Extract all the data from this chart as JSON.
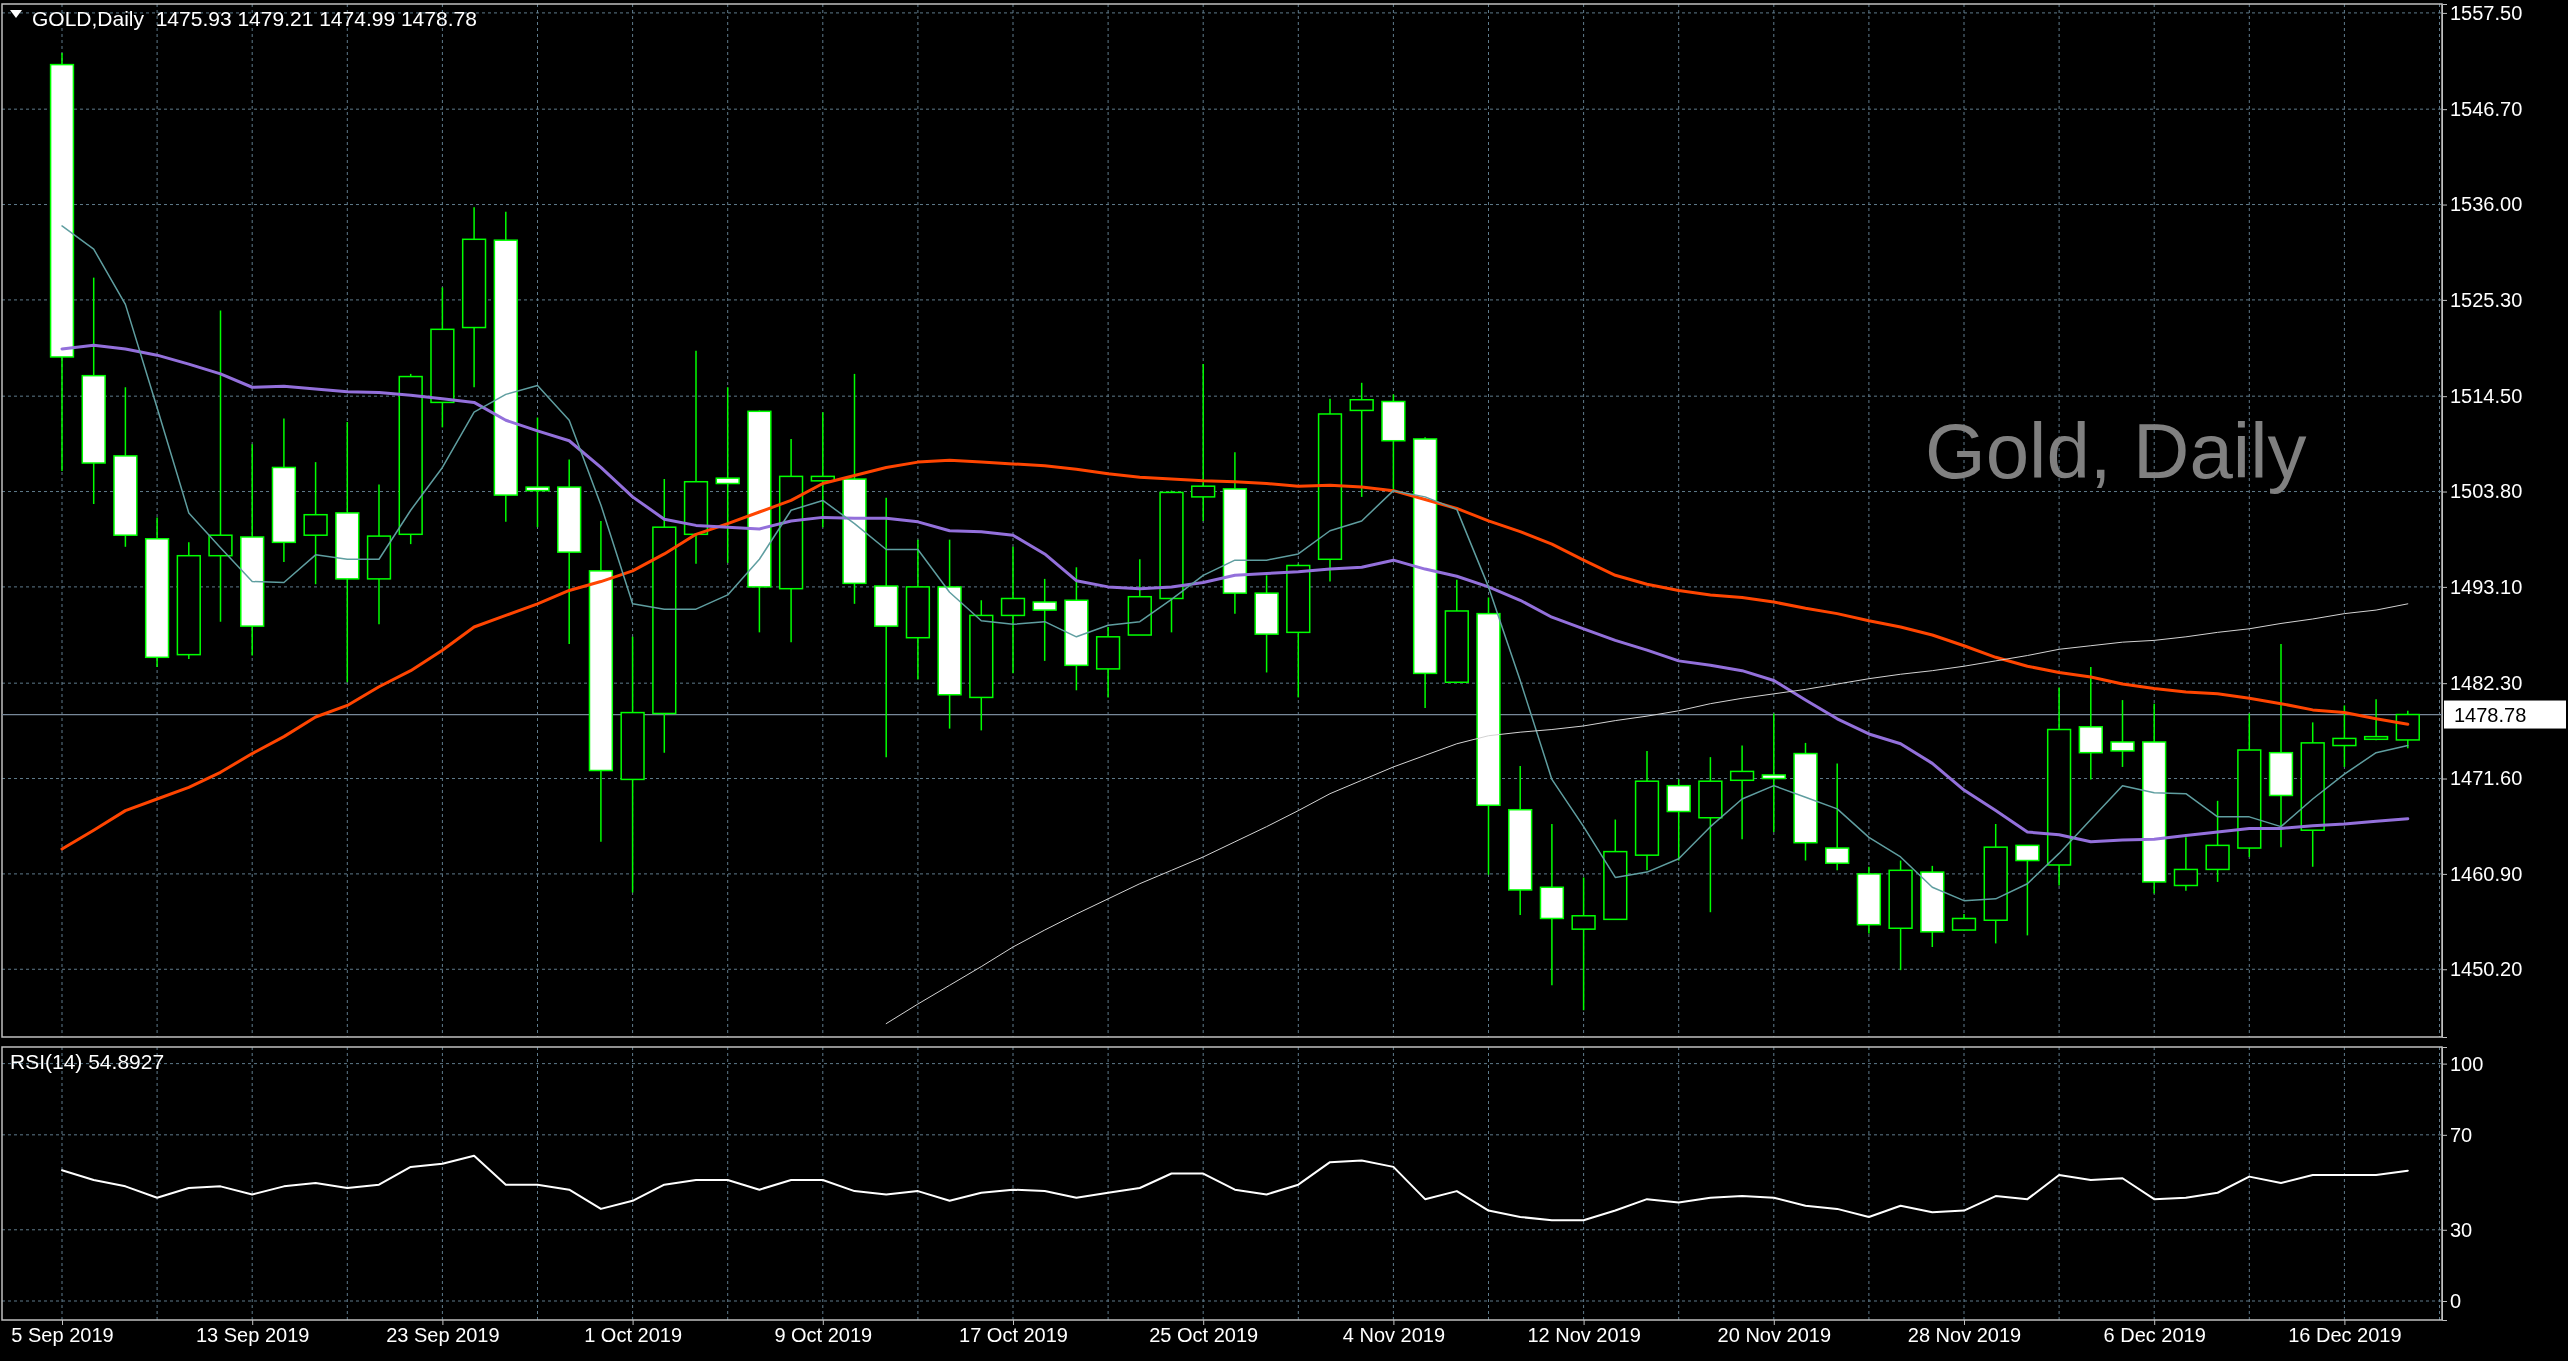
{
  "chart_data": [
    {
      "type": "candlestick",
      "title": "GOLD,Daily  1475.93 1479.21 1474.99 1478.78",
      "annotations": [
        "Gold, Daily"
      ],
      "tick_labels": "y",
      "grid": true,
      "categories": [
        null,
        null,
        null,
        null,
        null,
        null,
        null,
        null,
        null,
        null,
        null,
        null,
        null,
        null,
        null,
        null,
        null,
        null,
        null,
        null,
        null,
        null,
        null,
        null,
        null,
        null,
        null,
        null,
        null,
        null,
        null,
        null,
        null,
        null,
        null,
        null,
        null,
        null,
        null,
        null,
        null,
        null,
        null,
        null,
        null,
        null,
        null,
        null,
        null,
        null,
        null,
        null,
        null,
        null,
        null,
        null,
        null,
        null,
        null,
        null,
        null,
        null,
        null,
        null,
        null,
        null,
        null,
        null,
        null,
        null,
        null,
        null,
        null,
        null,
        null
      ],
      "ylim": [
        1442.6,
        1558.5
      ],
      "yticks": [
        {
          "value": 1450.2,
          "label": "1450.20"
        },
        {
          "value": 1460.9,
          "label": "1460.90"
        },
        {
          "value": 1471.6,
          "label": "1471.60"
        },
        {
          "value": 1482.3,
          "label": "1482.30"
        },
        {
          "value": 1493.1,
          "label": "1493.10"
        },
        {
          "value": 1503.8,
          "label": "1503.80"
        },
        {
          "value": 1514.5,
          "label": "1514.50"
        },
        {
          "value": 1525.3,
          "label": "1525.30"
        },
        {
          "value": 1536,
          "label": "1536.00"
        },
        {
          "value": 1546.7,
          "label": "1546.70"
        },
        {
          "value": 1557.5,
          "label": "1557.50"
        }
      ],
      "ref_lines": [
        {
          "axis": "y",
          "value": 1478.78,
          "label": "1478.78",
          "color": "#778899"
        }
      ],
      "series": [
        {
          "color": "#00ff00",
          "ohlc": [
            [
              1551.7,
              1553.0,
              1506.1,
              1518.9
            ],
            [
              1516.8,
              1527.8,
              1502.4,
              1507.0
            ],
            [
              1507.8,
              1515.5,
              1497.6,
              1498.9
            ],
            [
              1498.5,
              1500.9,
              1484.1,
              1485.2
            ],
            [
              1485.5,
              1498.1,
              1485.0,
              1496.6
            ],
            [
              1496.6,
              1524.1,
              1489.2,
              1498.9
            ],
            [
              1498.7,
              1509.1,
              1485.4,
              1488.7
            ],
            [
              1506.5,
              1512.0,
              1495.9,
              1498.1
            ],
            [
              1498.9,
              1507.1,
              1493.4,
              1501.2
            ],
            [
              1501.4,
              1511.6,
              1482.4,
              1494.0
            ],
            [
              1494.0,
              1504.6,
              1488.9,
              1498.8
            ],
            [
              1499.0,
              1517.0,
              1497.9,
              1516.7
            ],
            [
              1513.8,
              1526.7,
              1511.0,
              1522.0
            ],
            [
              1522.2,
              1535.7,
              1515.5,
              1532.1
            ],
            [
              1532.0,
              1535.2,
              1500.4,
              1503.4
            ],
            [
              1504.3,
              1512.1,
              1499.8,
              1503.9
            ],
            [
              1504.3,
              1507.4,
              1486.7,
              1497.0
            ],
            [
              1494.9,
              1500.5,
              1464.5,
              1472.5
            ],
            [
              1471.5,
              1487.5,
              1458.8,
              1479.0
            ],
            [
              1478.9,
              1505.2,
              1474.5,
              1499.8
            ],
            [
              1499.0,
              1519.6,
              1495.7,
              1504.9
            ],
            [
              1505.3,
              1515.5,
              1495.8,
              1504.7
            ],
            [
              1512.8,
              1512.9,
              1488.0,
              1493.1
            ],
            [
              1492.9,
              1509.7,
              1486.9,
              1505.5
            ],
            [
              1505.0,
              1512.7,
              1499.8,
              1505.5
            ],
            [
              1505.2,
              1517.0,
              1491.2,
              1493.5
            ],
            [
              1493.2,
              1503.1,
              1474.0,
              1488.7
            ],
            [
              1487.4,
              1498.4,
              1482.7,
              1493.1
            ],
            [
              1493.1,
              1498.4,
              1477.2,
              1481.0
            ],
            [
              1480.7,
              1491.6,
              1477.0,
              1489.9
            ],
            [
              1489.9,
              1497.6,
              1483.4,
              1491.8
            ],
            [
              1491.4,
              1494.0,
              1484.8,
              1490.5
            ],
            [
              1491.6,
              1495.3,
              1481.5,
              1484.3
            ],
            [
              1483.9,
              1488.6,
              1480.7,
              1487.5
            ],
            [
              1487.7,
              1496.2,
              1487.7,
              1492.0
            ],
            [
              1491.8,
              1503.9,
              1488.0,
              1503.7
            ],
            [
              1503.2,
              1518.1,
              1500.5,
              1504.4
            ],
            [
              1504.1,
              1508.2,
              1490.1,
              1492.4
            ],
            [
              1492.4,
              1494.4,
              1483.5,
              1487.8
            ],
            [
              1488.0,
              1495.7,
              1480.7,
              1495.5
            ],
            [
              1496.2,
              1514.2,
              1493.7,
              1512.5
            ],
            [
              1512.9,
              1516.0,
              1503.2,
              1514.1
            ],
            [
              1513.9,
              1514.7,
              1503.9,
              1509.5
            ],
            [
              1509.7,
              1509.9,
              1479.5,
              1483.4
            ],
            [
              1482.4,
              1493.9,
              1482.4,
              1490.4
            ],
            [
              1490.1,
              1491.9,
              1460.8,
              1468.6
            ],
            [
              1468.1,
              1473.0,
              1456.3,
              1459.1
            ],
            [
              1459.4,
              1466.5,
              1448.4,
              1455.9
            ],
            [
              1454.7,
              1460.5,
              1445.6,
              1456.2
            ],
            [
              1455.8,
              1467.0,
              1455.8,
              1463.4
            ],
            [
              1463.0,
              1474.7,
              1461.3,
              1471.3
            ],
            [
              1470.8,
              1471.5,
              1462.4,
              1467.9
            ],
            [
              1467.2,
              1474.0,
              1456.6,
              1471.3
            ],
            [
              1471.4,
              1475.3,
              1464.8,
              1472.4
            ],
            [
              1472.0,
              1478.9,
              1465.6,
              1471.6
            ],
            [
              1474.4,
              1475.6,
              1462.4,
              1464.4
            ],
            [
              1463.8,
              1473.3,
              1461.3,
              1462.1
            ],
            [
              1460.9,
              1461.7,
              1454.2,
              1455.2
            ],
            [
              1454.8,
              1462.4,
              1450.1,
              1461.3
            ],
            [
              1461.1,
              1461.8,
              1452.7,
              1454.4
            ],
            [
              1454.6,
              1456.4,
              1454.6,
              1455.9
            ],
            [
              1455.7,
              1466.5,
              1453.1,
              1463.9
            ],
            [
              1464.1,
              1464.1,
              1454.0,
              1462.4
            ],
            [
              1461.9,
              1481.8,
              1459.6,
              1477.1
            ],
            [
              1477.4,
              1484.1,
              1471.5,
              1474.5
            ],
            [
              1475.7,
              1480.4,
              1472.9,
              1474.7
            ],
            [
              1475.7,
              1480.0,
              1458.7,
              1460.0
            ],
            [
              1459.6,
              1465.0,
              1459.0,
              1461.4
            ],
            [
              1461.4,
              1469.1,
              1460.0,
              1464.1
            ],
            [
              1463.8,
              1478.9,
              1462.8,
              1474.8
            ],
            [
              1474.5,
              1486.7,
              1463.9,
              1469.7
            ],
            [
              1465.8,
              1477.9,
              1461.7,
              1475.6
            ],
            [
              1475.3,
              1479.8,
              1472.9,
              1476.1
            ],
            [
              1476.0,
              1480.5,
              1475.9,
              1476.3
            ],
            [
              1475.93,
              1479.21,
              1474.99,
              1478.78
            ]
          ],
          "colors": [
            "#ffffff",
            "#ffffff",
            "#ffffff",
            "#ffffff",
            "#000000",
            "#000000",
            "#ffffff",
            "#ffffff",
            "#000000",
            "#ffffff",
            "#000000",
            "#000000",
            "#000000",
            "#000000",
            "#ffffff",
            "#ffffff",
            "#ffffff",
            "#ffffff",
            "#000000",
            "#000000",
            "#000000",
            "#ffffff",
            "#ffffff",
            "#000000",
            "#000000",
            "#ffffff",
            "#ffffff",
            "#000000",
            "#ffffff",
            "#000000",
            "#000000",
            "#ffffff",
            "#ffffff",
            "#000000",
            "#000000",
            "#000000",
            "#000000",
            "#ffffff",
            "#ffffff",
            "#000000",
            "#000000",
            "#000000",
            "#ffffff",
            "#ffffff",
            "#000000",
            "#ffffff",
            "#ffffff",
            "#ffffff",
            "#000000",
            "#000000",
            "#000000",
            "#ffffff",
            "#000000",
            "#000000",
            "#ffffff",
            "#ffffff",
            "#ffffff",
            "#ffffff",
            "#000000",
            "#ffffff",
            "#000000",
            "#000000",
            "#ffffff",
            "#000000",
            "#ffffff",
            "#ffffff",
            "#ffffff",
            "#000000",
            "#000000",
            "#000000",
            "#ffffff",
            "#000000",
            "#000000",
            "#000000",
            "#000000"
          ]
        },
        {
          "type": "line",
          "color": "#ff4500",
          "values": [
            1463.7,
            1465.8,
            1468.0,
            1469.3,
            1470.6,
            1472.3,
            1474.4,
            1476.3,
            1478.5,
            1479.8,
            1481.9,
            1483.7,
            1486.0,
            1488.6,
            1489.9,
            1491.2,
            1492.7,
            1493.7,
            1494.9,
            1496.8,
            1499.0,
            1500.2,
            1501.5,
            1502.8,
            1504.7,
            1505.6,
            1506.5,
            1507.1,
            1507.3,
            1507.1,
            1506.9,
            1506.7,
            1506.3,
            1505.8,
            1505.4,
            1505.2,
            1505.0,
            1504.9,
            1504.7,
            1504.4,
            1504.5,
            1504.3,
            1503.9,
            1502.9,
            1501.9,
            1500.5,
            1499.3,
            1497.9,
            1496.1,
            1494.4,
            1493.4,
            1492.7,
            1492.2,
            1491.9,
            1491.4,
            1490.7,
            1490.1,
            1489.3,
            1488.6,
            1487.7,
            1486.5,
            1485.2,
            1484.2,
            1483.5,
            1483.0,
            1482.2,
            1481.7,
            1481.3,
            1481.1,
            1480.6,
            1480.0,
            1479.3,
            1479.0,
            1478.3,
            1477.7
          ]
        },
        {
          "type": "line",
          "color": "#9370db",
          "values": [
            1519.8,
            1520.2,
            1519.8,
            1519.1,
            1518.1,
            1517.0,
            1515.5,
            1515.6,
            1515.3,
            1515.0,
            1514.9,
            1514.6,
            1514.2,
            1513.8,
            1511.8,
            1510.6,
            1509.5,
            1506.5,
            1503.2,
            1500.7,
            1500.0,
            1499.8,
            1499.6,
            1500.5,
            1500.9,
            1500.8,
            1500.8,
            1500.4,
            1499.4,
            1499.3,
            1498.9,
            1496.8,
            1493.8,
            1493.1,
            1492.9,
            1493.1,
            1493.6,
            1494.4,
            1494.6,
            1494.8,
            1495.1,
            1495.3,
            1496.1,
            1495.1,
            1494.3,
            1493.1,
            1491.6,
            1489.7,
            1488.4,
            1487.1,
            1486.0,
            1484.8,
            1484.3,
            1483.7,
            1482.6,
            1480.4,
            1478.3,
            1476.6,
            1475.5,
            1473.3,
            1470.3,
            1468.0,
            1465.6,
            1465.3,
            1464.5,
            1464.7,
            1464.8,
            1465.2,
            1465.6,
            1466.0,
            1466.0,
            1466.3,
            1466.5,
            1466.8,
            1467.1
          ]
        },
        {
          "type": "line",
          "color": "#5f9ea0",
          "values": [
            1533.6,
            1531.0,
            1524.8,
            1513.2,
            1501.4,
            1497.5,
            1493.7,
            1493.6,
            1496.7,
            1496.2,
            1496.2,
            1501.7,
            1506.5,
            1512.7,
            1514.7,
            1515.7,
            1511.8,
            1502.3,
            1491.2,
            1490.6,
            1490.6,
            1492.2,
            1496.2,
            1501.7,
            1502.8,
            1500.2,
            1497.3,
            1497.3,
            1492.5,
            1489.3,
            1488.9,
            1489.2,
            1487.5,
            1488.8,
            1489.2,
            1491.7,
            1494.4,
            1496.1,
            1496.1,
            1496.8,
            1499.4,
            1500.5,
            1503.9,
            1503.2,
            1501.8,
            1493.1,
            1482.6,
            1471.5,
            1466.2,
            1460.5,
            1461.1,
            1462.6,
            1466.2,
            1469.3,
            1470.8,
            1469.5,
            1468.2,
            1465.0,
            1462.8,
            1459.4,
            1457.9,
            1458.1,
            1459.8,
            1463.2,
            1467.0,
            1470.8,
            1470.0,
            1469.9,
            1467.3,
            1467.3,
            1466.2,
            1469.3,
            1472.1,
            1474.5,
            1475.3
          ]
        },
        {
          "type": "line",
          "color": "#d3d3d3",
          "values": [
            null,
            null,
            null,
            null,
            null,
            null,
            null,
            null,
            null,
            null,
            null,
            null,
            null,
            null,
            null,
            null,
            null,
            null,
            null,
            null,
            null,
            null,
            null,
            null,
            null,
            null,
            1444.1,
            1446.3,
            1448.4,
            1450.5,
            1452.7,
            1454.6,
            1456.4,
            1458.1,
            1459.8,
            1461.3,
            1462.8,
            1464.5,
            1466.2,
            1468.0,
            1469.9,
            1471.4,
            1472.9,
            1474.2,
            1475.5,
            1476.4,
            1476.8,
            1477.1,
            1477.5,
            1478.1,
            1478.6,
            1479.2,
            1480.0,
            1480.6,
            1481.1,
            1481.6,
            1482.2,
            1482.8,
            1483.3,
            1483.7,
            1484.2,
            1484.8,
            1485.4,
            1486.1,
            1486.5,
            1486.9,
            1487.1,
            1487.5,
            1488.0,
            1488.4,
            1489.0,
            1489.5,
            1490.1,
            1490.5,
            1491.2
          ]
        }
      ]
    },
    {
      "type": "line",
      "title": "RSI(14) 54.8927",
      "grid": true,
      "categories": [
        "5 Sep 2019",
        null,
        null,
        null,
        null,
        null,
        "13 Sep 2019",
        null,
        null,
        null,
        null,
        null,
        "23 Sep 2019",
        null,
        null,
        null,
        null,
        null,
        "1 Oct 2019",
        null,
        null,
        null,
        null,
        null,
        "9 Oct 2019",
        null,
        null,
        null,
        null,
        null,
        "17 Oct 2019",
        null,
        null,
        null,
        null,
        null,
        "25 Oct 2019",
        null,
        null,
        null,
        null,
        null,
        "4 Nov 2019",
        null,
        null,
        null,
        null,
        null,
        "12 Nov 2019",
        null,
        null,
        null,
        null,
        null,
        "20 Nov 2019",
        null,
        null,
        null,
        null,
        null,
        "28 Nov 2019",
        null,
        null,
        null,
        null,
        null,
        "6 Dec 2019",
        null,
        null,
        null,
        null,
        null,
        "16 Dec 2019",
        null,
        null
      ],
      "ylim": [
        -8,
        107
      ],
      "yticks": [
        0,
        30,
        70,
        100
      ],
      "series": [
        {
          "color": "#ffffff",
          "values": [
            55.1,
            51,
            48.3,
            43.5,
            47.6,
            48.3,
            44.9,
            48.3,
            49.7,
            47.6,
            49,
            56.5,
            57.8,
            61.2,
            49,
            49,
            46.9,
            38.8,
            42.2,
            49,
            51,
            51,
            46.9,
            51,
            51,
            46.3,
            44.9,
            46.3,
            42.2,
            45.6,
            46.9,
            46.3,
            43.5,
            45.6,
            47.6,
            53.7,
            53.7,
            46.9,
            44.9,
            49,
            58.5,
            59.2,
            56.5,
            42.9,
            46.3,
            38.1,
            35.4,
            34,
            34,
            38.1,
            42.9,
            41.5,
            43.5,
            44.2,
            43.5,
            40.1,
            38.8,
            35.4,
            40.1,
            37.4,
            38.1,
            44.2,
            42.9,
            53.1,
            51,
            51.7,
            42.9,
            43.5,
            45.6,
            52.4,
            49.7,
            53.1,
            53.1,
            53.1,
            54.9
          ]
        }
      ]
    }
  ]
}
